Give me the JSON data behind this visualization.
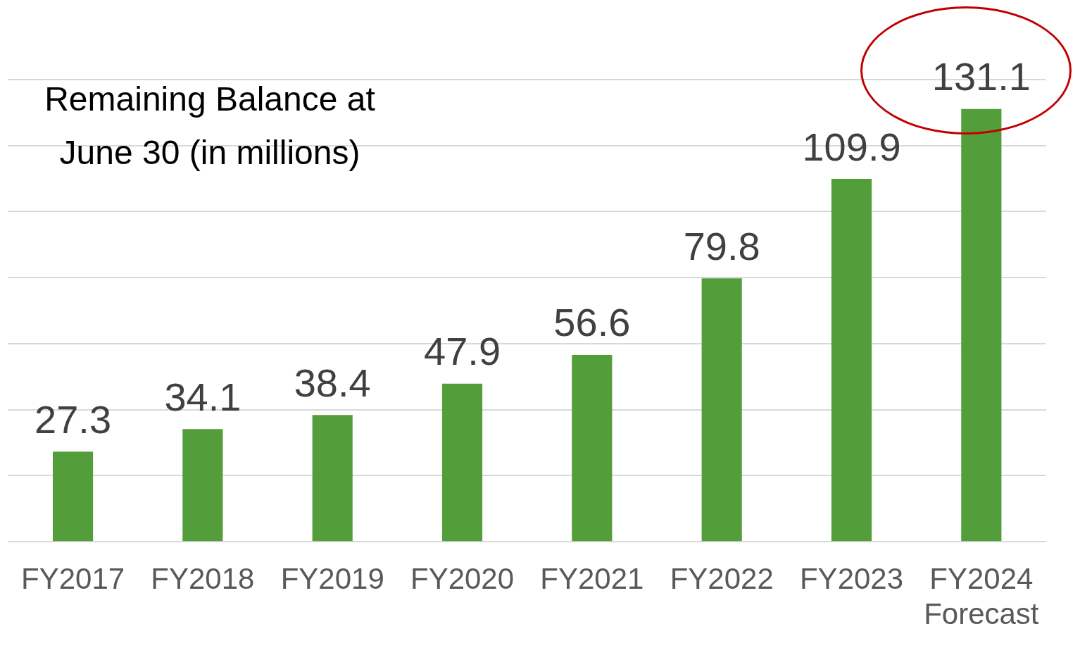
{
  "chart_data": {
    "type": "bar",
    "title": "Remaining Balance at\nJune 30 (in millions)",
    "categories": [
      "FY2017",
      "FY2018",
      "FY2019",
      "FY2020",
      "FY2021",
      "FY2022",
      "FY2023",
      "FY2024\nForecast"
    ],
    "values": [
      27.3,
      34.1,
      38.4,
      47.9,
      56.6,
      79.8,
      109.9,
      131.1
    ],
    "color": "#539e3a",
    "ylim": [
      0,
      140
    ],
    "yticks": [
      {
        "value": 0,
        "label": null
      },
      {
        "value": 20,
        "label": null
      },
      {
        "value": 40,
        "label": null
      },
      {
        "value": 60,
        "label": null
      },
      {
        "value": 80,
        "label": null
      },
      {
        "value": 100,
        "label": null
      },
      {
        "value": 120,
        "label": null
      },
      {
        "value": 140,
        "label": null
      }
    ],
    "grid": "y",
    "tick_labels": "x",
    "data_labels": true,
    "legend": false
  }
}
